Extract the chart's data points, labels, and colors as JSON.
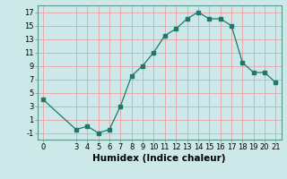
{
  "x": [
    0,
    3,
    4,
    5,
    6,
    7,
    8,
    9,
    10,
    11,
    12,
    13,
    14,
    15,
    16,
    17,
    18,
    19,
    20,
    21
  ],
  "y": [
    4.0,
    -0.5,
    0.0,
    -1.0,
    -0.5,
    3.0,
    7.5,
    9.0,
    11.0,
    13.5,
    14.5,
    16.0,
    17.0,
    16.0,
    16.0,
    15.0,
    9.5,
    8.0,
    8.0,
    6.5
  ],
  "line_color": "#1a7a6e",
  "marker": "s",
  "marker_size": 2.5,
  "bg_color": "#cce8e8",
  "grid_color": "#aacece",
  "xlabel": "Humidex (Indice chaleur)",
  "xlim": [
    -0.5,
    21.5
  ],
  "ylim": [
    -2,
    18
  ],
  "xticks": [
    0,
    3,
    4,
    5,
    6,
    7,
    8,
    9,
    10,
    11,
    12,
    13,
    14,
    15,
    16,
    17,
    18,
    19,
    20,
    21
  ],
  "yticks": [
    -1,
    1,
    3,
    5,
    7,
    9,
    11,
    13,
    15,
    17
  ],
  "tick_fontsize": 6,
  "label_fontsize": 7.5
}
